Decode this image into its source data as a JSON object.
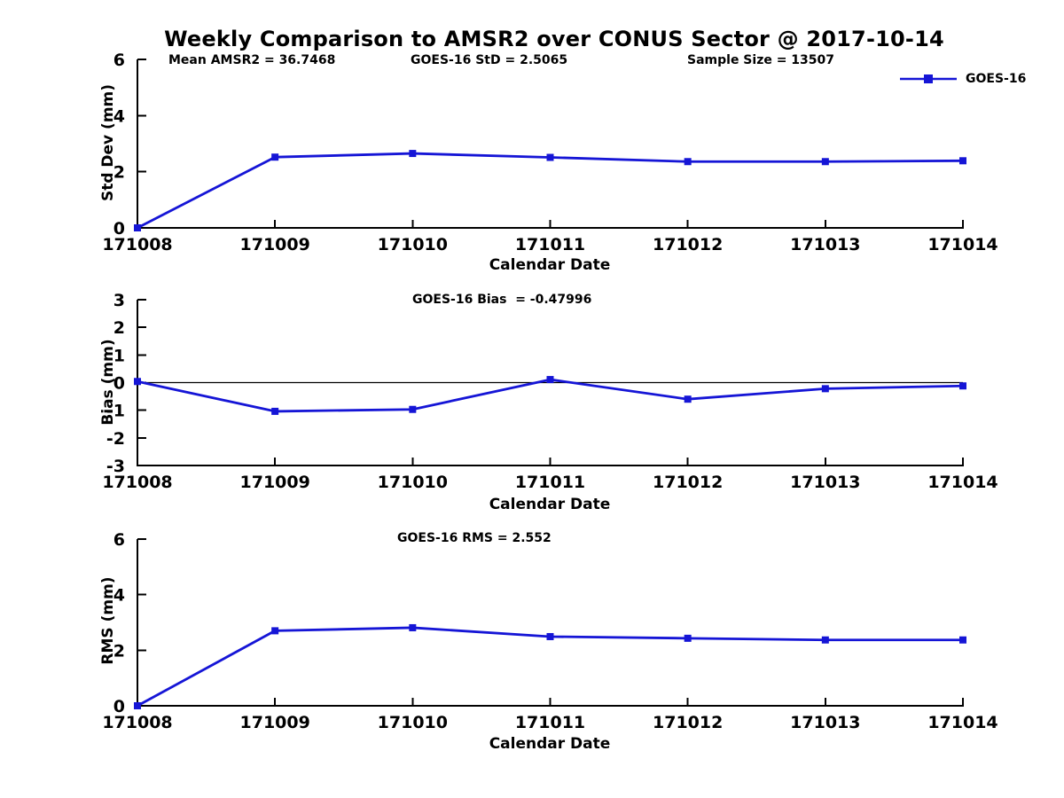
{
  "figure": {
    "title": "Weekly Comparison to AMSR2 over CONUS Sector @ 2017-10-14",
    "legend_label": "GOES-16",
    "series_color": "#1515d6",
    "axis_color": "#000000"
  },
  "chart_data": [
    {
      "type": "line",
      "name": "std-dev",
      "annotations": [
        "Mean AMSR2 = 36.7468",
        "GOES-16 StD = 2.5065",
        "Sample Size = 13507"
      ],
      "x": [
        "171008",
        "171009",
        "171010",
        "171011",
        "171012",
        "171013",
        "171014"
      ],
      "series": [
        {
          "name": "GOES-16",
          "values": [
            0,
            2.52,
            2.65,
            2.51,
            2.36,
            2.36,
            2.39
          ]
        }
      ],
      "xlabel": "Calendar Date",
      "ylabel": "Std Dev (mm)",
      "ylim": [
        0,
        6
      ],
      "yticks": [
        0,
        2,
        4,
        6
      ],
      "zero_line": false,
      "grid": false,
      "legend_position": "top-right"
    },
    {
      "type": "line",
      "name": "bias",
      "annotations": [
        "GOES-16 Bias  = -0.47996"
      ],
      "x": [
        "171008",
        "171009",
        "171010",
        "171011",
        "171012",
        "171013",
        "171014"
      ],
      "series": [
        {
          "name": "GOES-16",
          "values": [
            0.04,
            -1.04,
            -0.97,
            0.11,
            -0.6,
            -0.22,
            -0.12
          ]
        }
      ],
      "xlabel": "Calendar Date",
      "ylabel": "Bias (mm)",
      "ylim": [
        -3,
        3
      ],
      "yticks": [
        3,
        2,
        1,
        0,
        -1,
        -2,
        -3
      ],
      "zero_line": true,
      "grid": false,
      "legend_position": "none"
    },
    {
      "type": "line",
      "name": "rms",
      "annotations": [
        "GOES-16 RMS = 2.552"
      ],
      "x": [
        "171008",
        "171009",
        "171010",
        "171011",
        "171012",
        "171013",
        "171014"
      ],
      "series": [
        {
          "name": "GOES-16",
          "values": [
            0,
            2.7,
            2.81,
            2.49,
            2.43,
            2.37,
            2.37
          ]
        }
      ],
      "xlabel": "Calendar Date",
      "ylabel": "RMS (mm)",
      "ylim": [
        0,
        6
      ],
      "yticks": [
        0,
        2,
        4,
        6
      ],
      "zero_line": false,
      "grid": false,
      "legend_position": "none"
    }
  ]
}
